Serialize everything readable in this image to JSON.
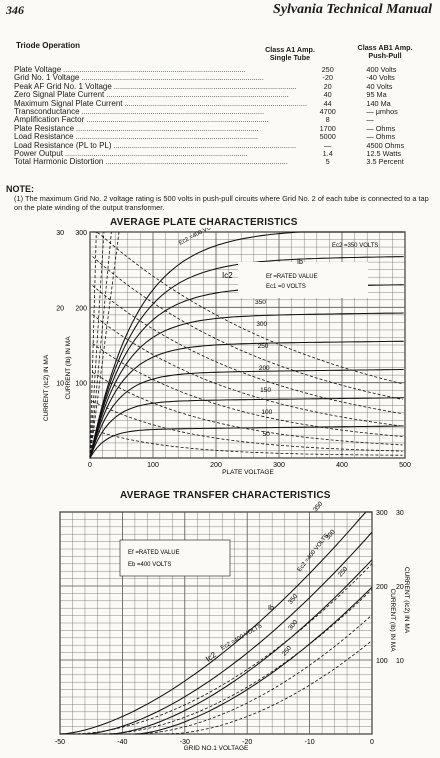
{
  "header": {
    "page_number": "346",
    "manual_title": "Sylvania Technical Manual"
  },
  "section_title": "Triode Operation",
  "columns": {
    "a1_line1": "Class A1 Amp.",
    "a1_line2": "Single Tube",
    "ab1_line1": "Class AB1 Amp.",
    "ab1_line2": "Push-Pull"
  },
  "rows": [
    {
      "label": "Plate Voltage",
      "a1": "250",
      "ab1": "400 Volts"
    },
    {
      "label": "Grid No. 1 Voltage",
      "a1": "-20",
      "ab1": "-40 Volts"
    },
    {
      "label": "Peak AF Grid No. 1 Voltage",
      "a1": "20",
      "ab1": "40 Volts"
    },
    {
      "label": "Zero Signal Plate Current",
      "a1": "40",
      "ab1": "95 Ma"
    },
    {
      "label": "Maximum Signal Plate Current",
      "a1": "44",
      "ab1": "140 Ma"
    },
    {
      "label": "Transconductance",
      "a1": "4700",
      "ab1": "— μmhos"
    },
    {
      "label": "Amplification Factor",
      "a1": "8",
      "ab1": "—"
    },
    {
      "label": "Plate Resistance",
      "a1": "1700",
      "ab1": "— Ohms"
    },
    {
      "label": "Load Resistance",
      "a1": "5000",
      "ab1": "— Ohms"
    },
    {
      "label": "Load Resistance (PL to PL)",
      "a1": "—",
      "ab1": "4500 Ohms"
    },
    {
      "label": "Power Output",
      "a1": "1.4",
      "ab1": "12.5 Watts"
    },
    {
      "label": "Total Harmonic Distortion",
      "a1": "5",
      "ab1": "3.5 Percent"
    }
  ],
  "note": {
    "heading": "NOTE:",
    "text": "(1) The maximum Grid No. 2 voltage rating is 500 volts in push-pull circuits where Grid No. 2 of each tube is connected to a tap on the plate winding of the output transformer."
  },
  "chart_data": [
    {
      "type": "line",
      "title": "AVERAGE PLATE CHARACTERISTICS",
      "xlabel": "PLATE VOLTAGE",
      "ylabel_left_outer": "CURRENT (Ic2) IN MA",
      "ylabel_left_inner": "CURRENT (Ib) IN MA",
      "xlim": [
        0,
        500
      ],
      "ylim": [
        0,
        300
      ],
      "x_ticks": [
        "0",
        "100",
        "200",
        "300",
        "400",
        "500"
      ],
      "y_ticks_ib": [
        "100",
        "200",
        "300"
      ],
      "y_ticks_ic2": [
        "10",
        "20",
        "30"
      ],
      "annotations": [
        "Ec2 =350 VOLTS",
        "Ec2 =400 VOLTS",
        "Ib",
        "Ic2",
        "Ef =RATED VALUE",
        "Ec1 =0 VOLTS"
      ],
      "curve_labels": [
        "400",
        "350",
        "300",
        "250",
        "200",
        "150",
        "100",
        "50"
      ],
      "grid": true
    },
    {
      "type": "line",
      "title": "AVERAGE TRANSFER CHARACTERISTICS",
      "xlabel": "GRID NO.1 VOLTAGE",
      "ylabel_right_inner": "CURRENT (Ib) IN MA",
      "ylabel_right_outer": "CURRENT (Ic2) IN MA",
      "xlim": [
        -50,
        0
      ],
      "ylim": [
        0,
        300
      ],
      "x_ticks": [
        "-50",
        "-40",
        "-30",
        "-20",
        "-10",
        "0"
      ],
      "y_ticks_ib": [
        "100",
        "200",
        "300"
      ],
      "y_ticks_ic2": [
        "10",
        "20",
        "30"
      ],
      "annotations": [
        "Ec2 =400 VOLTS",
        "Ib",
        "Ic2",
        "Ec2 =400 VOLTS",
        "Ef =RATED VALUE",
        "Eb =400 VOLTS"
      ],
      "curve_labels": [
        "350",
        "300",
        "250",
        "350",
        "300",
        "250"
      ],
      "grid": true
    }
  ]
}
